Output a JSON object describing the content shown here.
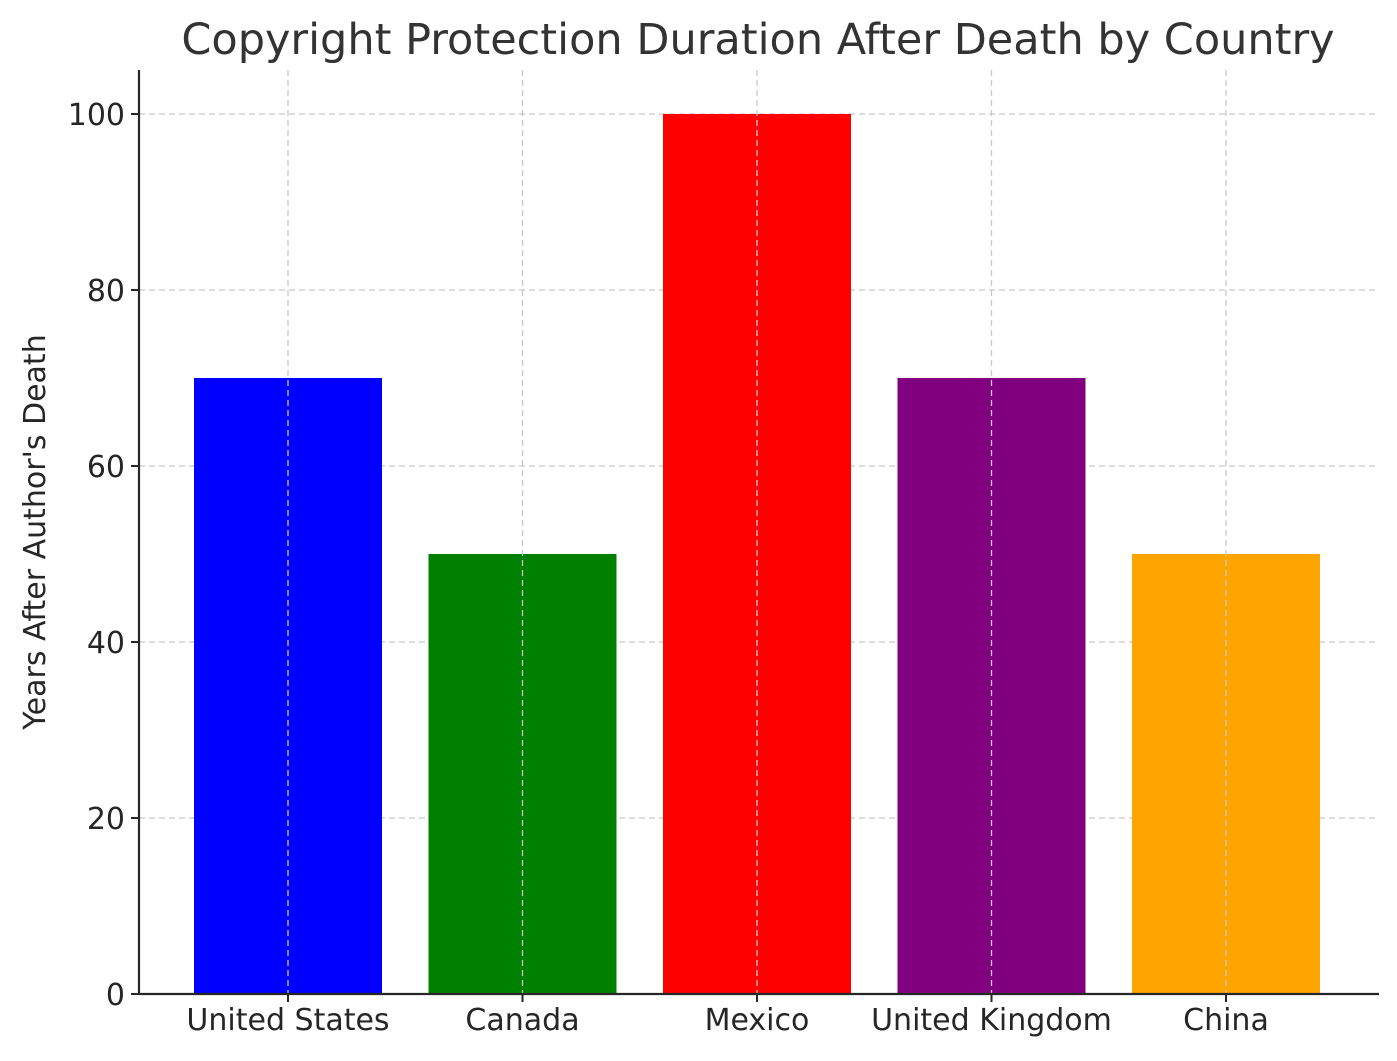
{
  "chart_data": {
    "type": "bar",
    "title": "Copyright Protection Duration After Death by Country",
    "xlabel": "",
    "ylabel": "Years After Author's Death",
    "categories": [
      "United States",
      "Canada",
      "Mexico",
      "United Kingdom",
      "China"
    ],
    "values": [
      70,
      50,
      100,
      70,
      50
    ],
    "colors": [
      "#0000ff",
      "#008000",
      "#ff0000",
      "#800080",
      "#ffa500"
    ],
    "yticks": [
      0,
      20,
      40,
      60,
      80,
      100
    ],
    "ylim": [
      0,
      105
    ],
    "grid": true,
    "legend": "none"
  }
}
